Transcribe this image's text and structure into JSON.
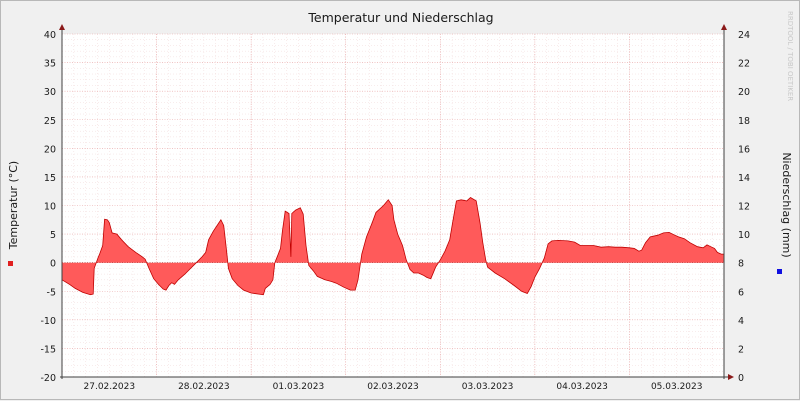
{
  "chart_data": {
    "type": "area",
    "title": "Temperatur und Niederschlag",
    "watermark": "RRDTOOL / TOBI OETIKER",
    "x_tick_labels": [
      "27.02.2023",
      "28.02.2023",
      "01.03.2023",
      "02.03.2023",
      "03.03.2023",
      "04.03.2023",
      "05.03.2023"
    ],
    "y_left": {
      "label": "Temperatur (°C)",
      "range": [
        -20,
        40
      ],
      "ticks": [
        40,
        35,
        30,
        25,
        20,
        15,
        10,
        5,
        0,
        -5,
        -10,
        -15,
        -20
      ]
    },
    "y_right": {
      "label": "Niederschlag (mm)",
      "range": [
        0,
        24
      ],
      "ticks": [
        24,
        22,
        20,
        18,
        16,
        14,
        12,
        10,
        8,
        6,
        4,
        2,
        0
      ]
    },
    "x_range_days": [
      0,
      7
    ],
    "grid": true,
    "legend": {
      "position": "side",
      "entries": [
        {
          "series": "Temperatur",
          "color": "#e02020"
        },
        {
          "series": "Niederschlag",
          "color": "#1010e0"
        }
      ]
    },
    "series": [
      {
        "color": "#ff5a5a",
        "stroke": "#c00000",
        "points": [
          [
            0.0,
            -3.0
          ],
          [
            0.08,
            -3.8
          ],
          [
            0.14,
            -4.5
          ],
          [
            0.22,
            -5.2
          ],
          [
            0.3,
            -5.6
          ],
          [
            0.33,
            -5.5
          ],
          [
            0.34,
            -1.0
          ],
          [
            0.38,
            0.8
          ],
          [
            0.4,
            1.6
          ],
          [
            0.43,
            3.0
          ],
          [
            0.45,
            7.6
          ],
          [
            0.48,
            7.5
          ],
          [
            0.5,
            7.0
          ],
          [
            0.53,
            5.2
          ],
          [
            0.58,
            5.0
          ],
          [
            0.63,
            4.0
          ],
          [
            0.7,
            2.8
          ],
          [
            0.78,
            1.8
          ],
          [
            0.85,
            1.0
          ],
          [
            0.88,
            0.6
          ],
          [
            0.92,
            -1.0
          ],
          [
            0.97,
            -2.8
          ],
          [
            1.02,
            -3.8
          ],
          [
            1.07,
            -4.6
          ],
          [
            1.1,
            -4.8
          ],
          [
            1.13,
            -4.0
          ],
          [
            1.16,
            -3.5
          ],
          [
            1.19,
            -3.8
          ],
          [
            1.23,
            -3.0
          ],
          [
            1.3,
            -2.0
          ],
          [
            1.36,
            -1.0
          ],
          [
            1.42,
            0.0
          ],
          [
            1.48,
            1.0
          ],
          [
            1.52,
            1.8
          ],
          [
            1.55,
            4.0
          ],
          [
            1.6,
            5.5
          ],
          [
            1.64,
            6.5
          ],
          [
            1.68,
            7.5
          ],
          [
            1.71,
            6.5
          ],
          [
            1.74,
            2.0
          ],
          [
            1.76,
            -1.0
          ],
          [
            1.8,
            -2.8
          ],
          [
            1.86,
            -4.0
          ],
          [
            1.92,
            -4.8
          ],
          [
            2.0,
            -5.3
          ],
          [
            2.08,
            -5.5
          ],
          [
            2.13,
            -5.6
          ],
          [
            2.15,
            -4.5
          ],
          [
            2.2,
            -3.8
          ],
          [
            2.23,
            -3.0
          ],
          [
            2.25,
            0.0
          ],
          [
            2.28,
            1.2
          ],
          [
            2.31,
            2.5
          ],
          [
            2.33,
            5.5
          ],
          [
            2.36,
            9.0
          ],
          [
            2.4,
            8.6
          ],
          [
            2.42,
            1.0
          ],
          [
            2.43,
            8.6
          ],
          [
            2.47,
            9.2
          ],
          [
            2.52,
            9.6
          ],
          [
            2.55,
            8.5
          ],
          [
            2.58,
            3.0
          ],
          [
            2.61,
            -0.5
          ],
          [
            2.66,
            -1.5
          ],
          [
            2.7,
            -2.4
          ],
          [
            2.78,
            -3.0
          ],
          [
            2.85,
            -3.3
          ],
          [
            2.9,
            -3.6
          ],
          [
            2.98,
            -4.3
          ],
          [
            3.05,
            -4.8
          ],
          [
            3.1,
            -4.8
          ],
          [
            3.13,
            -3.0
          ],
          [
            3.17,
            1.5
          ],
          [
            3.22,
            4.5
          ],
          [
            3.28,
            7.0
          ],
          [
            3.32,
            8.8
          ],
          [
            3.4,
            10.0
          ],
          [
            3.45,
            11.0
          ],
          [
            3.49,
            10.0
          ],
          [
            3.51,
            7.5
          ],
          [
            3.55,
            5.0
          ],
          [
            3.6,
            3.0
          ],
          [
            3.64,
            0.5
          ],
          [
            3.68,
            -1.2
          ],
          [
            3.72,
            -1.8
          ],
          [
            3.77,
            -1.8
          ],
          [
            3.82,
            -2.2
          ],
          [
            3.86,
            -2.6
          ],
          [
            3.9,
            -2.8
          ],
          [
            3.93,
            -1.6
          ],
          [
            3.95,
            -0.8
          ],
          [
            4.0,
            0.5
          ],
          [
            4.05,
            2.0
          ],
          [
            4.1,
            4.0
          ],
          [
            4.13,
            7.0
          ],
          [
            4.17,
            10.8
          ],
          [
            4.22,
            11.0
          ],
          [
            4.28,
            10.8
          ],
          [
            4.32,
            11.4
          ],
          [
            4.38,
            10.8
          ],
          [
            4.42,
            7.0
          ],
          [
            4.45,
            3.5
          ],
          [
            4.48,
            0.5
          ],
          [
            4.5,
            -0.8
          ],
          [
            4.58,
            -1.8
          ],
          [
            4.68,
            -2.8
          ],
          [
            4.78,
            -4.0
          ],
          [
            4.86,
            -5.0
          ],
          [
            4.92,
            -5.4
          ],
          [
            4.96,
            -4.2
          ],
          [
            5.0,
            -2.5
          ],
          [
            5.05,
            -1.0
          ],
          [
            5.1,
            0.8
          ],
          [
            5.14,
            3.3
          ],
          [
            5.18,
            3.8
          ],
          [
            5.25,
            3.9
          ],
          [
            5.35,
            3.8
          ],
          [
            5.42,
            3.6
          ],
          [
            5.48,
            3.0
          ],
          [
            5.55,
            3.0
          ],
          [
            5.62,
            3.0
          ],
          [
            5.7,
            2.7
          ],
          [
            5.78,
            2.8
          ],
          [
            5.85,
            2.7
          ],
          [
            5.92,
            2.7
          ],
          [
            6.0,
            2.6
          ],
          [
            6.05,
            2.5
          ],
          [
            6.1,
            2.0
          ],
          [
            6.13,
            2.2
          ],
          [
            6.17,
            3.5
          ],
          [
            6.22,
            4.5
          ],
          [
            6.3,
            4.8
          ],
          [
            6.36,
            5.2
          ],
          [
            6.42,
            5.3
          ],
          [
            6.48,
            4.8
          ],
          [
            6.52,
            4.5
          ],
          [
            6.58,
            4.2
          ],
          [
            6.64,
            3.5
          ],
          [
            6.72,
            2.8
          ],
          [
            6.78,
            2.6
          ],
          [
            6.82,
            3.1
          ],
          [
            6.86,
            2.8
          ],
          [
            6.9,
            2.5
          ],
          [
            6.93,
            1.8
          ],
          [
            6.97,
            1.5
          ],
          [
            7.0,
            1.5
          ]
        ]
      }
    ]
  }
}
